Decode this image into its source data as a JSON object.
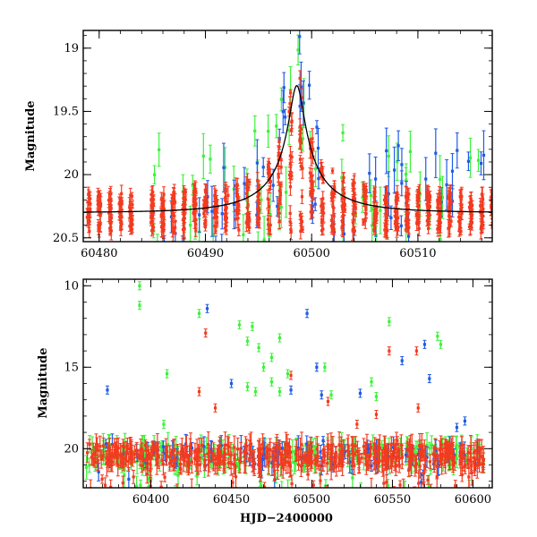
{
  "colors": {
    "red": "#f23b20",
    "green": "#3df23b",
    "blue": "#1f5be6",
    "model": "#000000"
  },
  "chart_data": [
    {
      "type": "scatter",
      "panel": "top",
      "title": "",
      "xlabel": "",
      "ylabel": "Magnitude",
      "xlim": [
        60478.5,
        60517
      ],
      "ylim": [
        20.53,
        18.86
      ],
      "y_inverted": true,
      "xticks": [
        60480,
        60490,
        60500,
        60510
      ],
      "yticks": [
        19,
        19.5,
        20,
        20.5
      ],
      "xtick_labels": [
        "60480",
        "60490",
        "60500",
        "60510"
      ],
      "ytick_labels": [
        "19",
        "19.5",
        "20",
        "20.5"
      ],
      "model_curve": {
        "t0": 60498.6,
        "u0": 0.09,
        "tE": 7.2,
        "baseline_mag": 20.3,
        "fs": 0.15
      },
      "series": [
        {
          "color": "red",
          "t_start": 60479,
          "t_end": 60517,
          "nightly_clusters": true,
          "night_span": 0.3,
          "mag_faint": 20.45,
          "mag_bright_model": true
        },
        {
          "color": "green",
          "t_start": 60485,
          "t_end": 60516,
          "sparse": true
        },
        {
          "color": "blue",
          "t_start": 60486,
          "t_end": 60517,
          "sparse": true
        }
      ]
    },
    {
      "type": "scatter",
      "panel": "bottom",
      "title": "",
      "xlabel": "HJD−2400000",
      "ylabel": "Magnitude",
      "xlim": [
        60358,
        60612
      ],
      "ylim": [
        22.4,
        9.6
      ],
      "y_inverted": true,
      "xticks": [
        60400,
        60450,
        60500,
        60550,
        60600
      ],
      "yticks": [
        10,
        15,
        20
      ],
      "xtick_labels": [
        "60400",
        "60450",
        "60500",
        "60550",
        "60600"
      ],
      "ytick_labels": [
        "10",
        "15",
        "20"
      ],
      "baseline_mag": 20.4,
      "outliers": {
        "green": [
          [
            60393,
            10.0
          ],
          [
            60393,
            11.2
          ],
          [
            60430,
            11.7
          ],
          [
            60410,
            15.4
          ],
          [
            60408,
            18.5
          ],
          [
            60455,
            12.4
          ],
          [
            60463,
            12.5
          ],
          [
            60460,
            13.4
          ],
          [
            60467,
            13.8
          ],
          [
            60475,
            14.4
          ],
          [
            60480,
            13.2
          ],
          [
            60470,
            15.0
          ],
          [
            60475,
            15.9
          ],
          [
            60485,
            15.4
          ],
          [
            60460,
            16.2
          ],
          [
            60465,
            16.5
          ],
          [
            60480,
            16.5
          ],
          [
            60508,
            15.0
          ],
          [
            60537,
            15.9
          ],
          [
            60540,
            16.8
          ],
          [
            60548,
            12.2
          ],
          [
            60578,
            13.1
          ],
          [
            60580,
            13.6
          ],
          [
            60512,
            16.7
          ]
        ],
        "red": [
          [
            60434,
            12.9
          ],
          [
            60430,
            16.5
          ],
          [
            60440,
            17.5
          ],
          [
            60487,
            15.5
          ],
          [
            60510,
            17.1
          ],
          [
            60540,
            17.9
          ],
          [
            60548,
            14.0
          ],
          [
            60565,
            14.0
          ],
          [
            60566,
            17.5
          ],
          [
            60528,
            18.5
          ],
          [
            60553,
            19.5
          ]
        ],
        "blue": [
          [
            60373,
            16.4
          ],
          [
            60435,
            11.4
          ],
          [
            60450,
            16.0
          ],
          [
            60487,
            16.4
          ],
          [
            60497,
            11.7
          ],
          [
            60503,
            15.0
          ],
          [
            60506,
            16.7
          ],
          [
            60530,
            16.6
          ],
          [
            60556,
            14.6
          ],
          [
            60570,
            13.6
          ],
          [
            60573,
            15.7
          ],
          [
            60507,
            19.5
          ],
          [
            60535,
            20.0
          ],
          [
            60595,
            18.3
          ],
          [
            60590,
            18.7
          ]
        ]
      }
    }
  ]
}
